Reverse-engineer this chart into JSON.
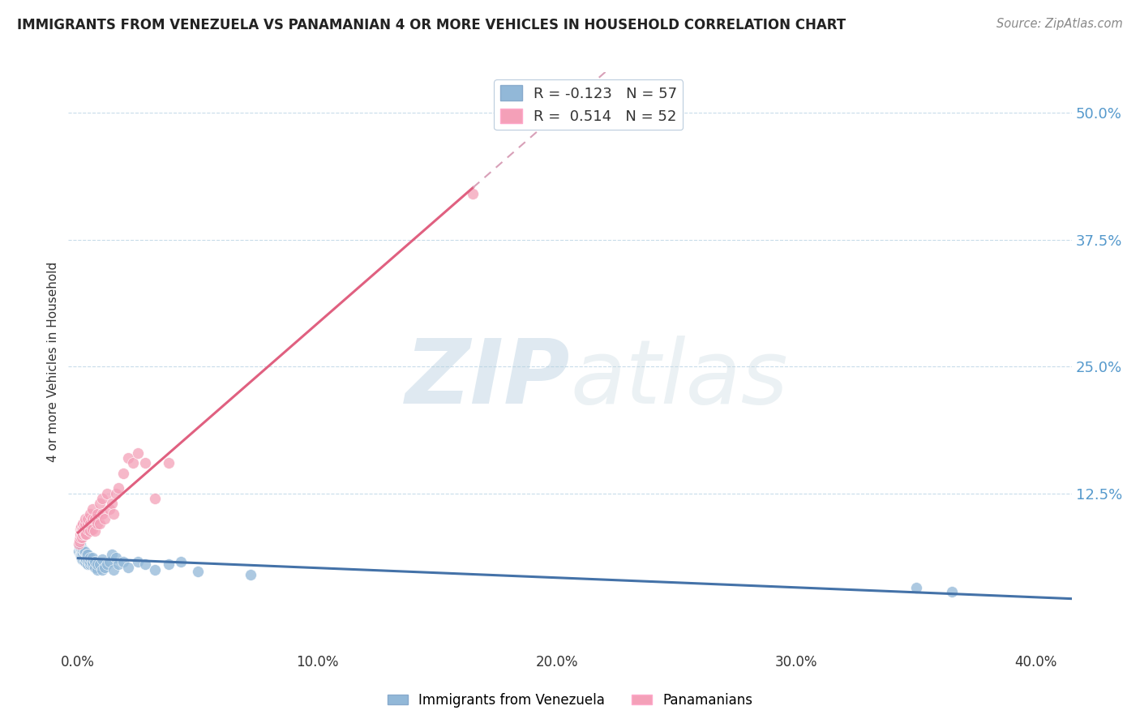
{
  "title": "IMMIGRANTS FROM VENEZUELA VS PANAMANIAN 4 OR MORE VEHICLES IN HOUSEHOLD CORRELATION CHART",
  "source": "Source: ZipAtlas.com",
  "xlabel_ticks": [
    "0.0%",
    "10.0%",
    "20.0%",
    "30.0%",
    "40.0%"
  ],
  "xlabel_tick_vals": [
    0.0,
    0.1,
    0.2,
    0.3,
    0.4
  ],
  "ylabel": "4 or more Vehicles in Household",
  "ylabel_ticks_right": [
    "50.0%",
    "37.5%",
    "25.0%",
    "12.5%"
  ],
  "ylabel_tick_vals": [
    0.5,
    0.375,
    0.25,
    0.125
  ],
  "ylim": [
    -0.03,
    0.54
  ],
  "xlim": [
    -0.004,
    0.415
  ],
  "color_blue": "#92b8d8",
  "color_pink": "#f4a0b8",
  "trendline_blue_color": "#4472a8",
  "trendline_pink_color": "#e06080",
  "trendline_pink_dashed_color": "#d8a0b8",
  "watermark_zip": "ZIP",
  "watermark_atlas": "atlas",
  "blue_R": "-0.123",
  "blue_N": "57",
  "pink_R": "0.514",
  "pink_N": "52",
  "blue_scatter_x": [
    0.0004,
    0.0006,
    0.0008,
    0.001,
    0.001,
    0.001,
    0.0012,
    0.0012,
    0.0014,
    0.0015,
    0.0016,
    0.0018,
    0.002,
    0.002,
    0.002,
    0.0022,
    0.0025,
    0.003,
    0.003,
    0.003,
    0.0032,
    0.0035,
    0.004,
    0.004,
    0.004,
    0.0045,
    0.005,
    0.005,
    0.005,
    0.006,
    0.006,
    0.006,
    0.007,
    0.007,
    0.008,
    0.008,
    0.009,
    0.01,
    0.01,
    0.011,
    0.012,
    0.013,
    0.014,
    0.015,
    0.016,
    0.017,
    0.019,
    0.021,
    0.025,
    0.028,
    0.032,
    0.038,
    0.043,
    0.05,
    0.072,
    0.35,
    0.365
  ],
  "blue_scatter_y": [
    0.068,
    0.072,
    0.065,
    0.07,
    0.075,
    0.08,
    0.065,
    0.07,
    0.065,
    0.068,
    0.06,
    0.065,
    0.06,
    0.065,
    0.07,
    0.062,
    0.068,
    0.058,
    0.062,
    0.067,
    0.06,
    0.065,
    0.055,
    0.06,
    0.065,
    0.058,
    0.055,
    0.058,
    0.062,
    0.055,
    0.058,
    0.062,
    0.052,
    0.058,
    0.05,
    0.055,
    0.055,
    0.05,
    0.06,
    0.052,
    0.055,
    0.058,
    0.065,
    0.05,
    0.062,
    0.055,
    0.058,
    0.052,
    0.058,
    0.055,
    0.05,
    0.055,
    0.058,
    0.048,
    0.045,
    0.032,
    0.028
  ],
  "pink_scatter_x": [
    0.0003,
    0.0005,
    0.0007,
    0.0009,
    0.001,
    0.001,
    0.0012,
    0.0013,
    0.0015,
    0.0016,
    0.0018,
    0.002,
    0.002,
    0.002,
    0.0022,
    0.0025,
    0.003,
    0.003,
    0.003,
    0.0032,
    0.004,
    0.004,
    0.004,
    0.005,
    0.005,
    0.005,
    0.006,
    0.006,
    0.006,
    0.007,
    0.007,
    0.008,
    0.008,
    0.009,
    0.009,
    0.01,
    0.01,
    0.011,
    0.012,
    0.013,
    0.014,
    0.015,
    0.016,
    0.017,
    0.019,
    0.021,
    0.023,
    0.025,
    0.028,
    0.032,
    0.038,
    0.165
  ],
  "pink_scatter_y": [
    0.075,
    0.08,
    0.078,
    0.082,
    0.085,
    0.09,
    0.088,
    0.092,
    0.085,
    0.09,
    0.082,
    0.085,
    0.09,
    0.095,
    0.088,
    0.092,
    0.085,
    0.095,
    0.1,
    0.085,
    0.09,
    0.095,
    0.1,
    0.088,
    0.095,
    0.105,
    0.09,
    0.1,
    0.11,
    0.088,
    0.1,
    0.095,
    0.105,
    0.095,
    0.115,
    0.105,
    0.12,
    0.1,
    0.125,
    0.11,
    0.115,
    0.105,
    0.125,
    0.13,
    0.145,
    0.16,
    0.155,
    0.165,
    0.155,
    0.12,
    0.155,
    0.42
  ],
  "pink_trendline_x_start": 0.0,
  "pink_trendline_x_solid_end": 0.165,
  "pink_trendline_x_end": 0.415,
  "blue_trendline_x_start": 0.0,
  "blue_trendline_x_end": 0.415
}
